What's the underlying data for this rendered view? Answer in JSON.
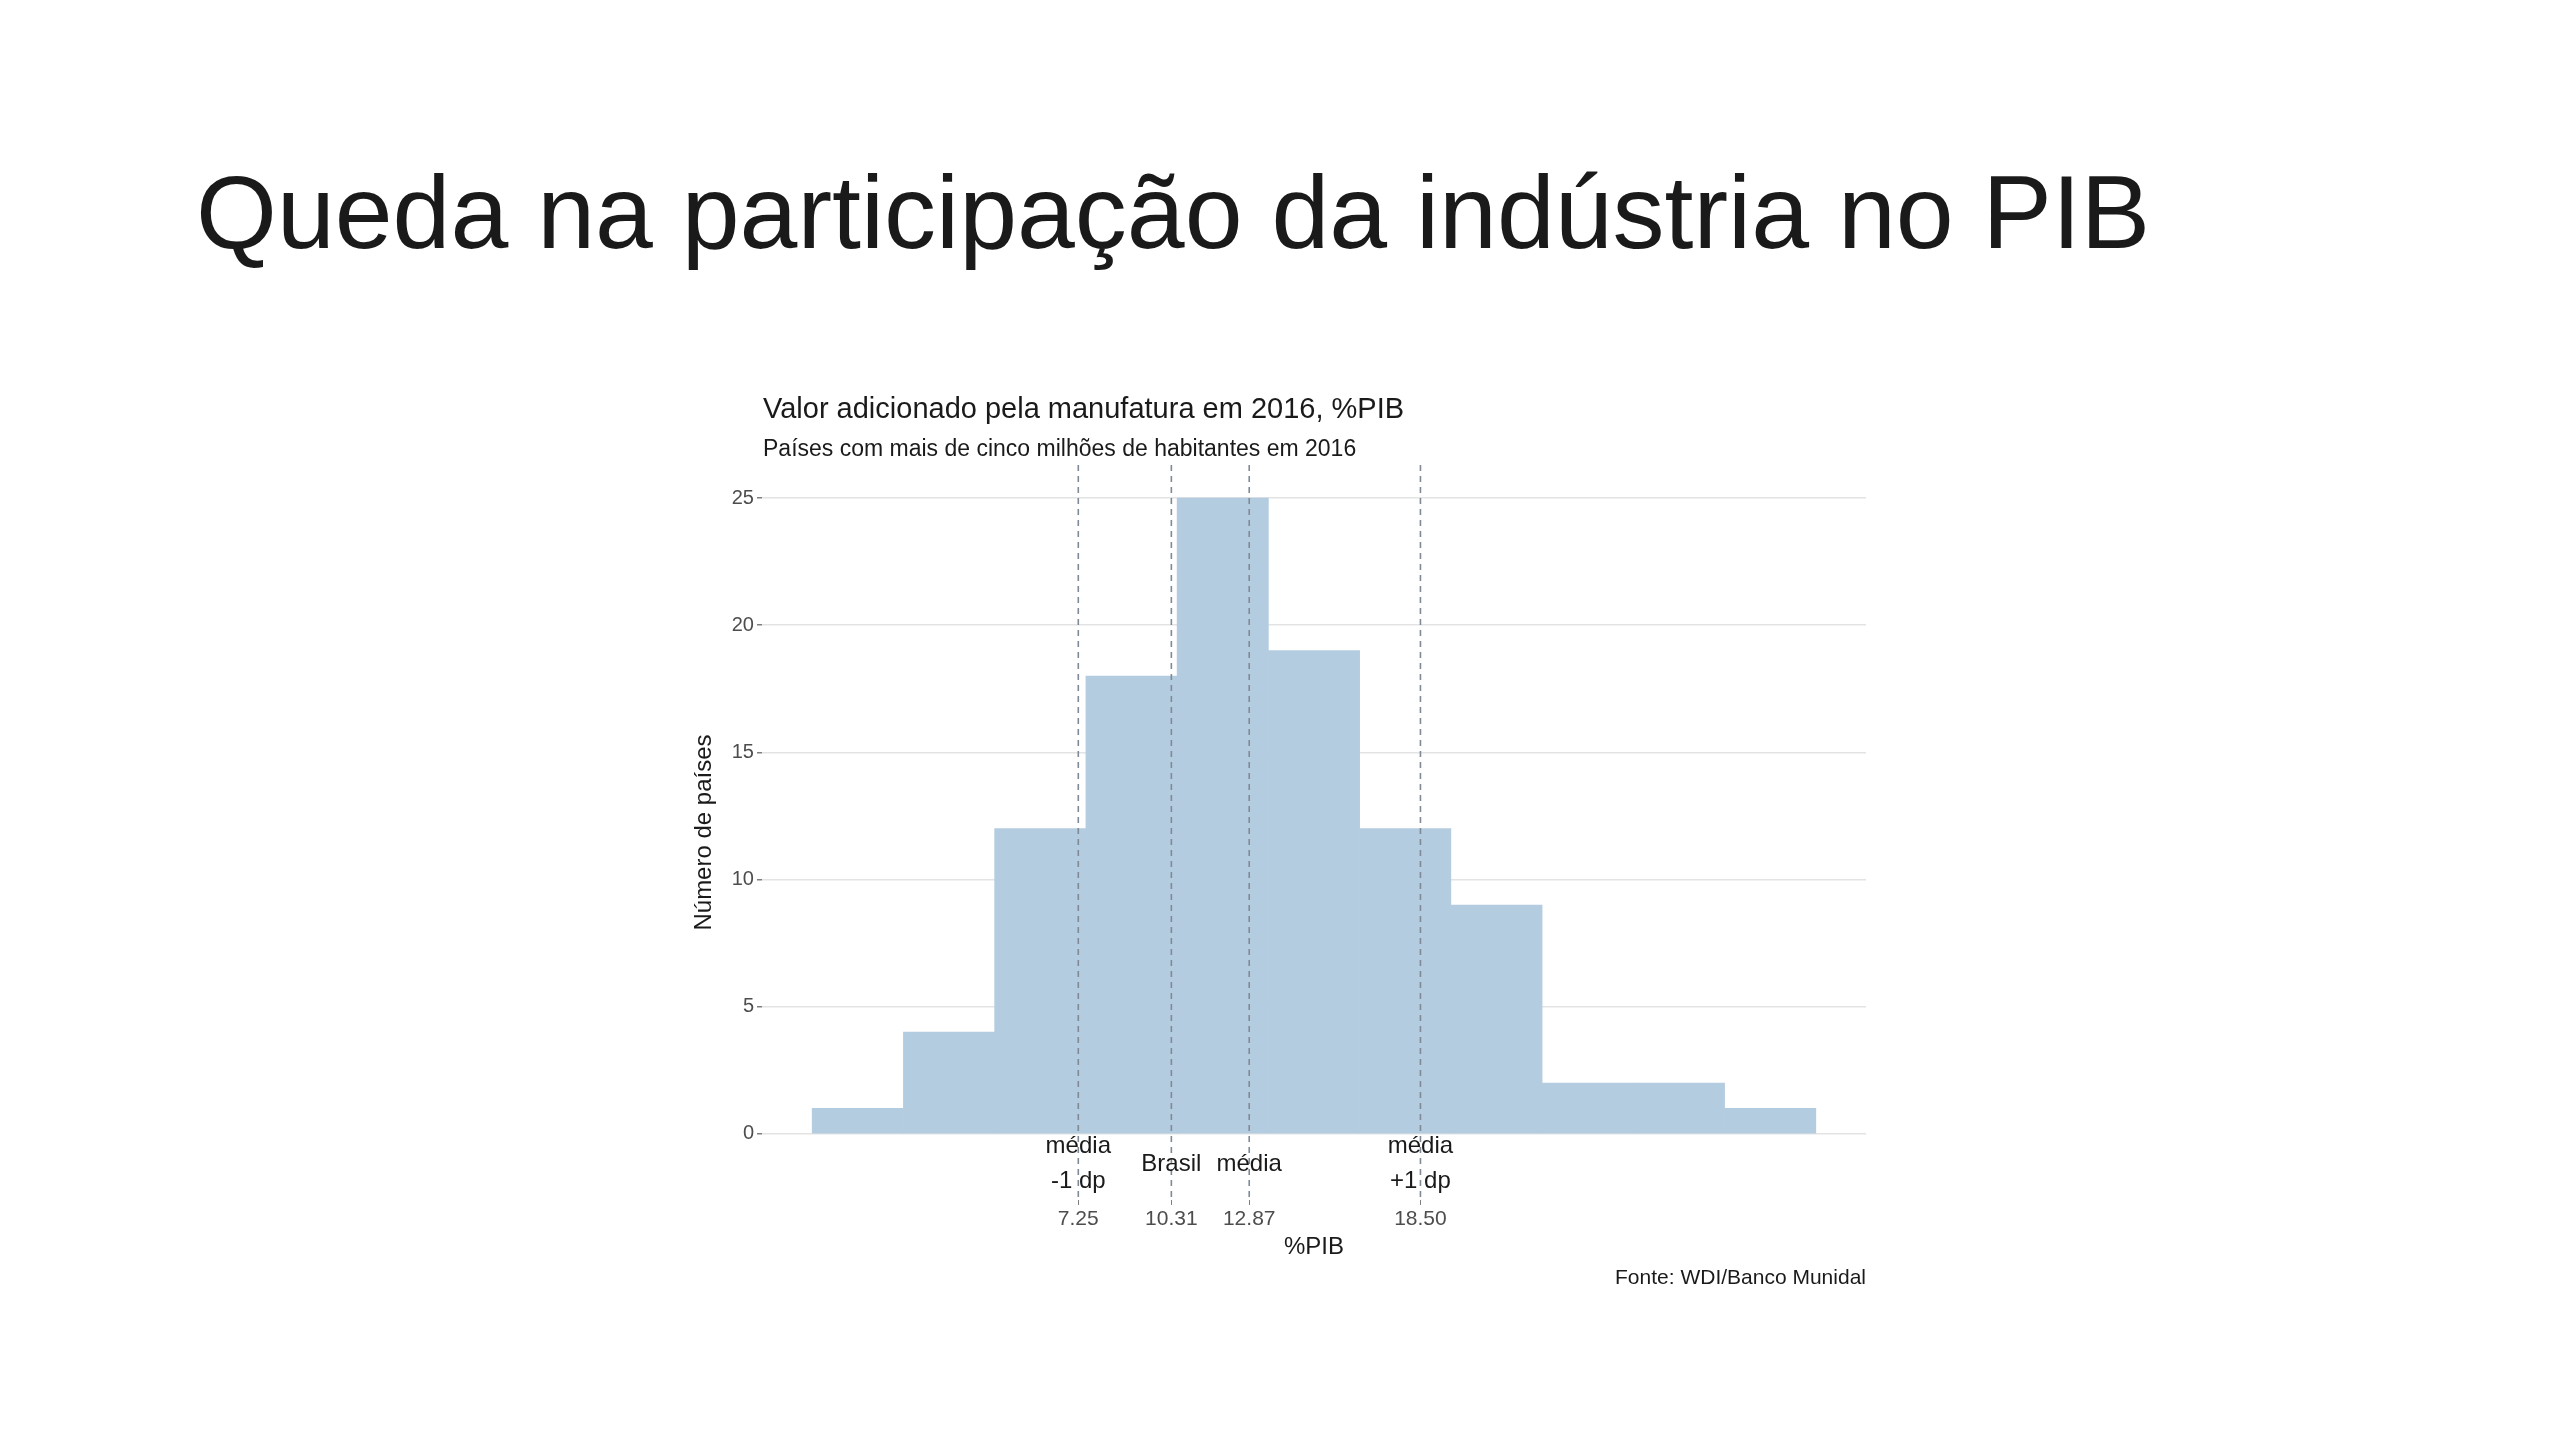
{
  "chart_data": {
    "type": "histogram",
    "title": "Valor adicionado pela manufatura em 2016, %PIB",
    "subtitle": "Países com mais de cinco milhões de habitantes em 2016",
    "xlabel": "%PIB",
    "ylabel": "Número de países",
    "annotations": [
      "Queda na participação da indústria no PIB",
      "Fonte: WDI/Banco Munidal"
    ],
    "bins": [
      -1.5,
      1.5,
      4.5,
      7.5,
      10.5,
      13.5,
      16.5,
      19.5,
      22.5,
      25.5,
      28.5,
      31.5
    ],
    "values": [
      1,
      4,
      12,
      18,
      25,
      19,
      12,
      9,
      2,
      2,
      1
    ],
    "color": "#b4cce0",
    "xlim": [
      -3.15,
      33.15
    ],
    "ylim": [
      -2.6,
      26.3
    ],
    "xticks": [
      7.25,
      10.31,
      12.87,
      {
        "value": 18.5,
        "label": "18.50"
      }
    ],
    "yticks": [
      0,
      5,
      10,
      15,
      20,
      25
    ],
    "grid": "y",
    "ref_lines": [
      {
        "axis": "x",
        "value": 7.25,
        "label": "média\n-1 dp",
        "color": "#7f8a96",
        "line_style": "dashed"
      },
      {
        "axis": "x",
        "value": 10.31,
        "label": "Brasil",
        "color": "#7f8a96",
        "line_style": "dashed"
      },
      {
        "axis": "x",
        "value": 12.87,
        "label": "média",
        "color": "#7f8a96",
        "line_style": "dashed"
      },
      {
        "axis": "x",
        "value": 18.5,
        "label": "média\n+1 dp",
        "color": "#7f8a96",
        "line_style": "dashed"
      }
    ]
  }
}
